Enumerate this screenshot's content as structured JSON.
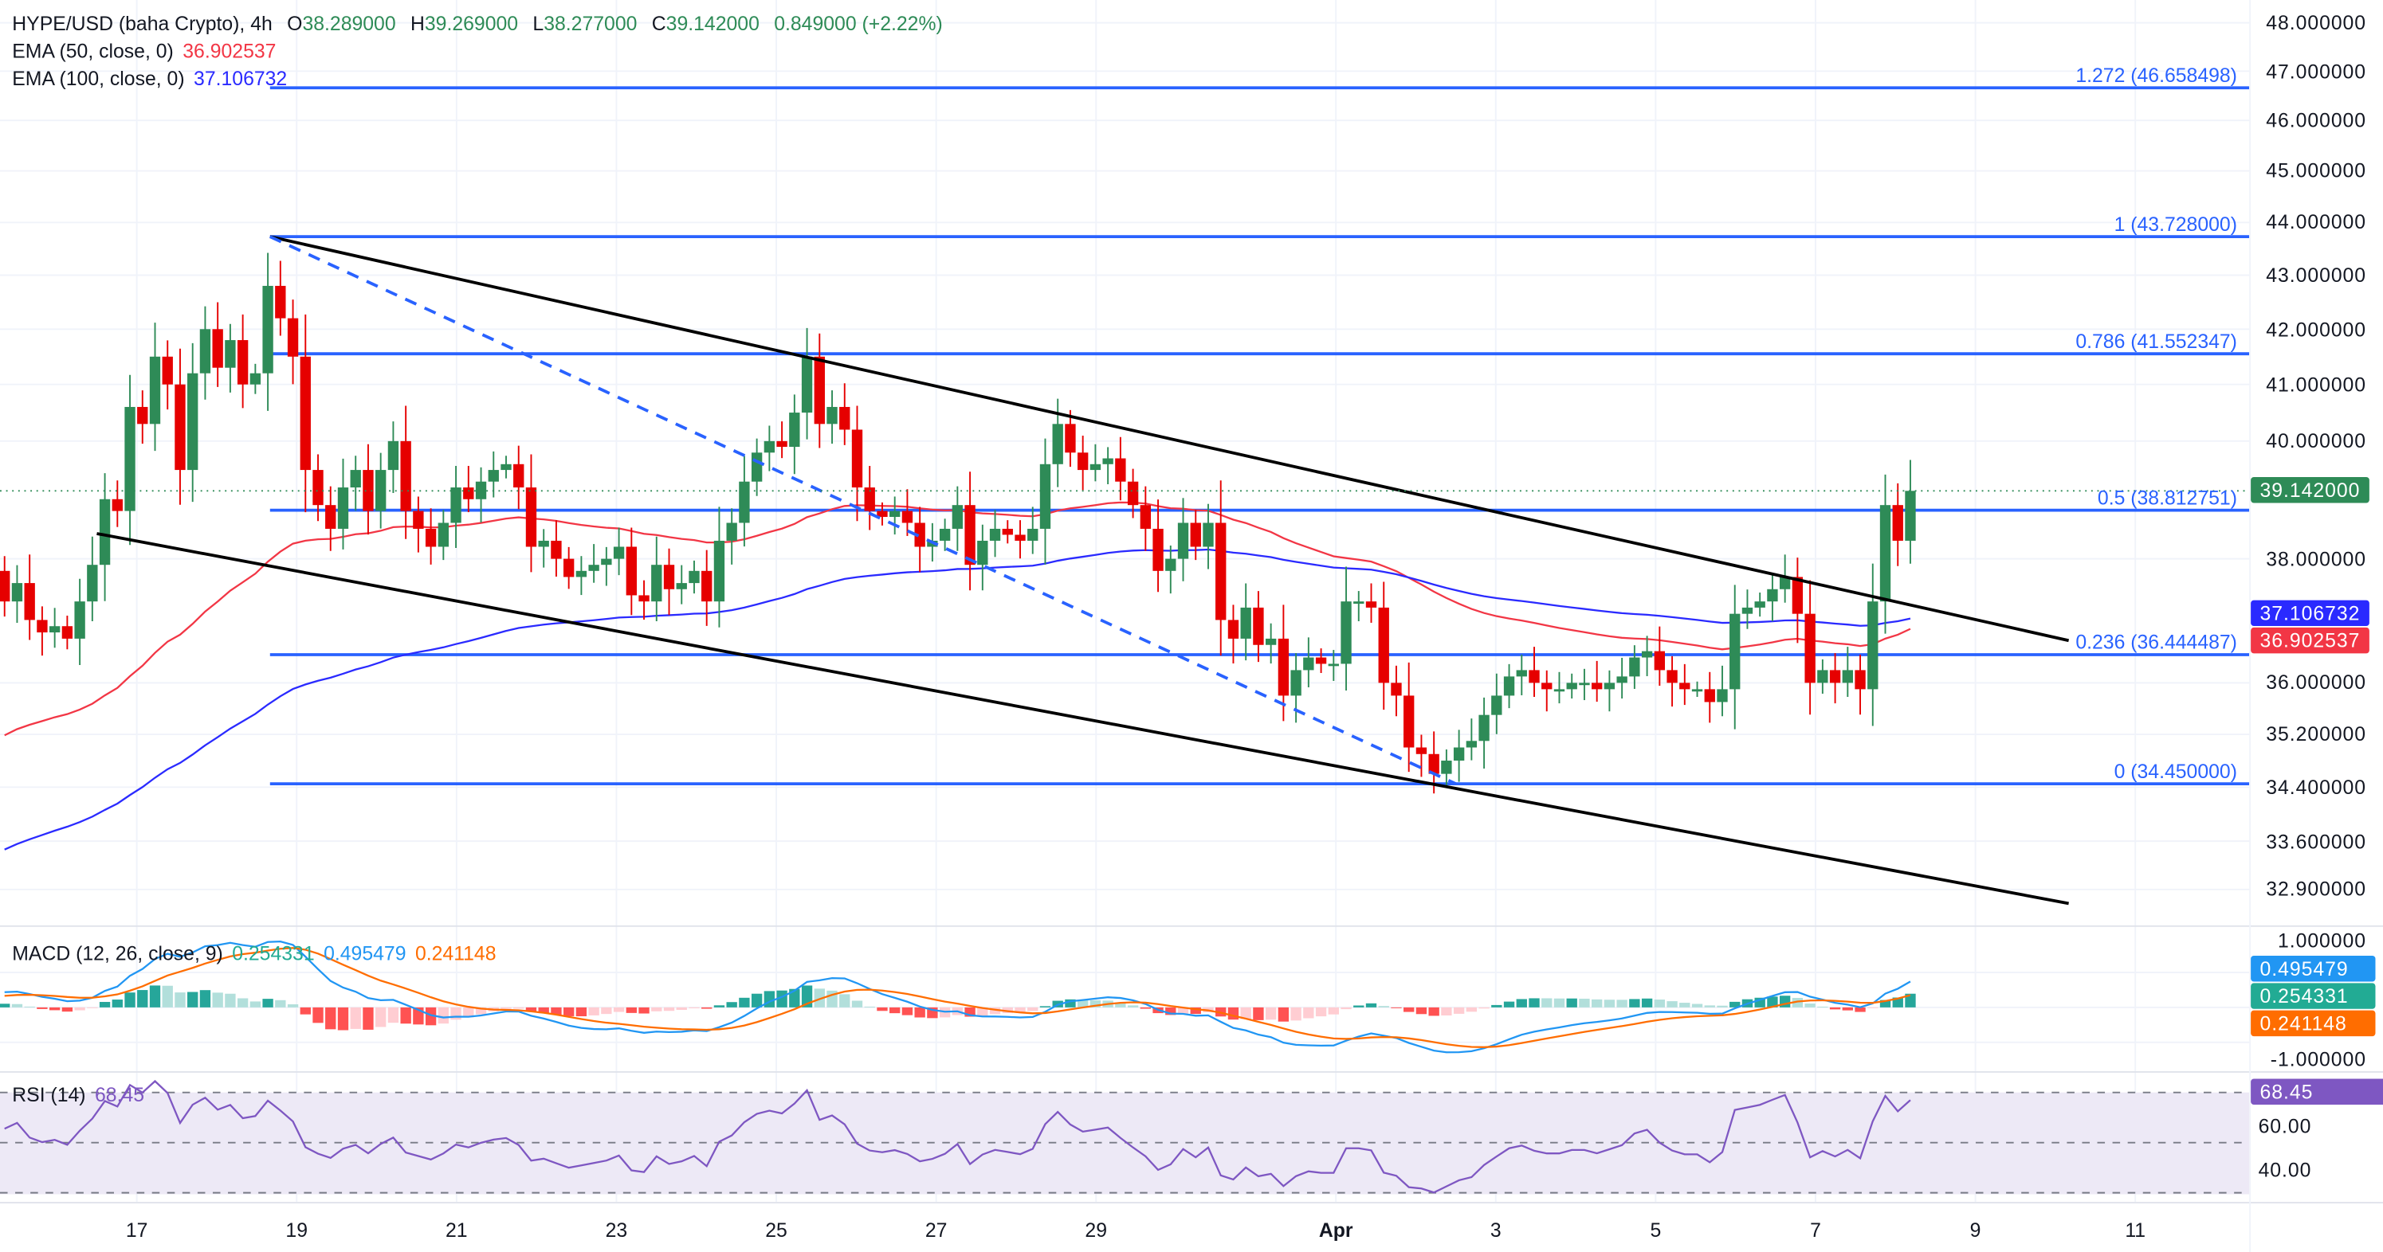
{
  "header": {
    "symbol": "HYPE/USD (baha Crypto), 4h",
    "open_label": "O",
    "open": "38.289000",
    "high_label": "H",
    "high": "39.269000",
    "low_label": "L",
    "low": "38.277000",
    "close_label": "C",
    "close": "39.142000",
    "change": "0.849000 (+2.22%)"
  },
  "indicators": {
    "ema50": {
      "label": "EMA (50, close, 0)",
      "value": "36.902537",
      "color": "#f23645"
    },
    "ema100": {
      "label": "EMA (100, close, 0)",
      "value": "37.106732",
      "color": "#2a2aff"
    },
    "macd": {
      "label": "MACD (12, 26, close, 9)",
      "hist": "0.254331",
      "macd": "0.495479",
      "signal": "0.241148",
      "macd_color": "#2196f3",
      "signal_color": "#ff6d00",
      "hist_color": "#22ab94"
    },
    "rsi": {
      "label": "RSI (14)",
      "value": "68.45",
      "color": "#7e57c2"
    }
  },
  "price_axis": {
    "ticks": [
      "48.000000",
      "47.000000",
      "46.000000",
      "45.000000",
      "44.000000",
      "43.000000",
      "42.000000",
      "41.000000",
      "40.000000",
      "38.000000",
      "36.000000",
      "35.200000",
      "34.400000",
      "33.600000",
      "32.900000"
    ],
    "last_price_badge": "39.142000",
    "ema100_badge": "37.106732",
    "ema50_badge": "36.902537",
    "macd_badges": [
      "0.495479",
      "0.254331",
      "0.241148"
    ],
    "macd_ticks": [
      "1.000000",
      "-1.000000"
    ],
    "rsi_badge": "68.45",
    "rsi_ticks": [
      "60.00",
      "40.00"
    ]
  },
  "time_axis": {
    "ticks": [
      "17",
      "19",
      "21",
      "23",
      "25",
      "27",
      "29",
      "Apr",
      "3",
      "5",
      "7",
      "9",
      "11"
    ]
  },
  "chart_data": {
    "type": "candlestick",
    "title": "HYPE/USD (baha Crypto), 4h",
    "y_scale": "log",
    "ylim": [
      32.5,
      48.2
    ],
    "grid": true,
    "colors": {
      "up": "#2e8b57",
      "down": "#e60000"
    },
    "closes": [
      37.3,
      37.6,
      37.0,
      36.8,
      36.9,
      36.7,
      37.3,
      37.9,
      39.0,
      38.8,
      40.6,
      40.3,
      41.5,
      41.0,
      39.5,
      41.2,
      42.0,
      41.3,
      41.8,
      41.0,
      41.2,
      42.8,
      42.2,
      41.5,
      39.5,
      38.9,
      38.5,
      39.2,
      39.5,
      38.8,
      39.5,
      40.0,
      38.8,
      38.5,
      38.2,
      38.6,
      39.2,
      39.0,
      39.3,
      39.5,
      39.6,
      39.2,
      38.2,
      38.3,
      38.0,
      37.7,
      37.8,
      37.9,
      38.0,
      38.2,
      37.4,
      37.3,
      37.9,
      37.5,
      37.6,
      37.8,
      37.3,
      38.3,
      38.6,
      39.3,
      39.8,
      40.0,
      39.9,
      40.5,
      41.5,
      40.3,
      40.6,
      40.2,
      39.2,
      38.8,
      38.7,
      38.8,
      38.6,
      38.2,
      38.3,
      38.5,
      38.9,
      37.9,
      38.3,
      38.5,
      38.4,
      38.3,
      38.5,
      39.6,
      40.3,
      39.8,
      39.5,
      39.6,
      39.7,
      39.3,
      38.9,
      38.5,
      37.8,
      38.0,
      38.6,
      38.2,
      38.6,
      37.0,
      36.7,
      37.2,
      36.6,
      36.7,
      35.8,
      36.2,
      36.4,
      36.3,
      36.3,
      37.3,
      37.3,
      37.2,
      36.0,
      35.8,
      35.0,
      34.9,
      34.6,
      34.8,
      35.0,
      35.1,
      35.5,
      35.8,
      36.1,
      36.2,
      36.0,
      35.9,
      35.9,
      36.0,
      36.0,
      35.9,
      36.0,
      36.1,
      36.4,
      36.5,
      36.2,
      36.0,
      35.9,
      35.9,
      35.7,
      35.9,
      37.1,
      37.2,
      37.3,
      37.5,
      37.7,
      37.1,
      36.0,
      36.2,
      36.0,
      36.2,
      35.9,
      37.3,
      38.9,
      38.3,
      39.142
    ],
    "fib_levels": [
      {
        "label": "1.272 (46.658498)",
        "price": 46.658498
      },
      {
        "label": "1 (43.728000)",
        "price": 43.728
      },
      {
        "label": "0.786 (41.552347)",
        "price": 41.552347
      },
      {
        "label": "0.5 (38.812751)",
        "price": 38.812751
      },
      {
        "label": "0.236 (36.444487)",
        "price": 36.444487
      },
      {
        "label": "0 (34.450000)",
        "price": 34.45
      }
    ],
    "fib_color": "#2962ff",
    "trendlines": [
      {
        "style": "solid",
        "color": "#000000",
        "from": {
          "date": "03-18 16:00",
          "price": 43.728
        },
        "to": {
          "date": "04-10 04:00",
          "price": 36.67
        }
      },
      {
        "style": "solid",
        "color": "#000000",
        "from": {
          "date": "03-16 12:00",
          "price": 38.42
        },
        "to": {
          "date": "04-10 04:00",
          "price": 32.7
        }
      },
      {
        "style": "dashed",
        "color": "#2962ff",
        "from": {
          "date": "03-18 16:00",
          "price": 43.728
        },
        "to": {
          "date": "04-02 12:00",
          "price": 34.45
        }
      }
    ]
  }
}
